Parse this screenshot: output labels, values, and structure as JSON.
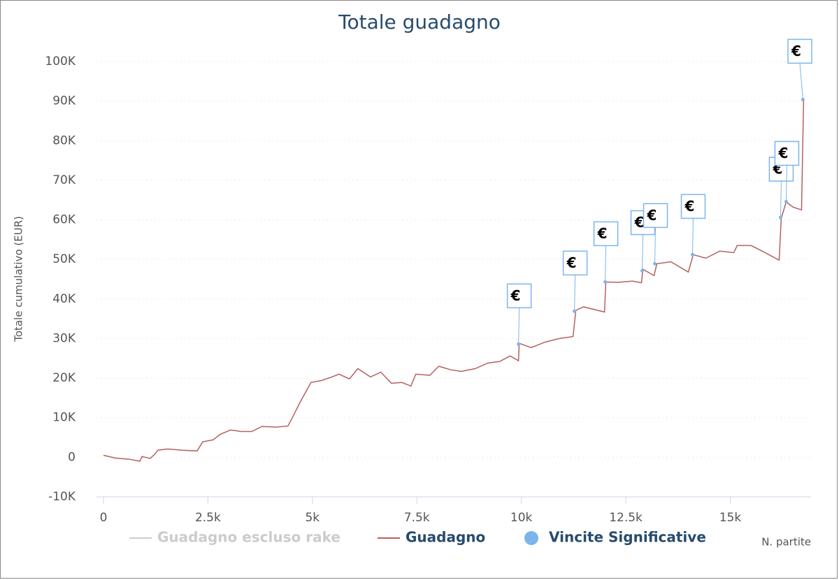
{
  "chart_data": {
    "type": "line",
    "title": "Totale guadagno",
    "x_label": "N. partite",
    "y_label": "Totale cumulativo (EUR)",
    "xlim": [
      0,
      16900
    ],
    "ylim": [
      -10000,
      100000
    ],
    "xticks": [
      0,
      {
        "value": 2500,
        "label": "2.5k"
      },
      {
        "value": 5000,
        "label": "5k"
      },
      {
        "value": 7500,
        "label": "7.5k"
      },
      {
        "value": 10000,
        "label": "10k"
      },
      {
        "value": 12500,
        "label": "12.5k"
      },
      {
        "value": 15000,
        "label": "15k"
      }
    ],
    "yticks": [
      {
        "value": -10000,
        "label": "-10K"
      },
      0,
      {
        "value": 10000,
        "label": "10K"
      },
      {
        "value": 20000,
        "label": "20K"
      },
      {
        "value": 30000,
        "label": "30K"
      },
      {
        "value": 40000,
        "label": "40K"
      },
      {
        "value": 50000,
        "label": "50K"
      },
      {
        "value": 60000,
        "label": "60K"
      },
      {
        "value": 70000,
        "label": "70K"
      },
      {
        "value": 80000,
        "label": "80K"
      },
      {
        "value": 90000,
        "label": "90K"
      },
      {
        "value": 100000,
        "label": "100K"
      }
    ],
    "grid": true,
    "series": [
      {
        "name": "Guadagno escluso rake",
        "color": "#cccccc",
        "kind": "line",
        "visible": false,
        "x": [],
        "values": []
      },
      {
        "name": "Guadagno",
        "color": "#b5615f",
        "kind": "line",
        "visible": true,
        "x": [
          0,
          284,
          619,
          870,
          920,
          1120,
          1237,
          1304,
          1538,
          1873,
          2241,
          2375,
          2625,
          2793,
          3043,
          3294,
          3545,
          3796,
          4130,
          4415,
          4548,
          4716,
          4967,
          5217,
          5468,
          5635,
          5886,
          6087,
          6388,
          6639,
          6890,
          7140,
          7358,
          7475,
          7809,
          8027,
          8311,
          8562,
          8896,
          9197,
          9482,
          9732,
          9933,
          9950,
          10234,
          10569,
          10903,
          11237,
          11304,
          11488,
          11990,
          12023,
          12324,
          12659,
          12876,
          12910,
          13177,
          13244,
          13579,
          13997,
          14114,
          14415,
          14749,
          15084,
          15167,
          15502,
          15836,
          16171,
          16221,
          16338,
          16505,
          16706,
          16756
        ],
        "values": [
          500,
          -200,
          -500,
          -1000,
          200,
          -300,
          900,
          1800,
          2100,
          1800,
          1600,
          3900,
          4400,
          5800,
          6900,
          6500,
          6500,
          7800,
          7600,
          7900,
          10600,
          14100,
          18900,
          19400,
          20300,
          21000,
          19800,
          22400,
          20300,
          21500,
          18700,
          18900,
          18000,
          21000,
          20700,
          23000,
          22100,
          21700,
          22400,
          23800,
          24200,
          25600,
          24400,
          28800,
          27700,
          29100,
          30000,
          30500,
          37100,
          38000,
          36700,
          44300,
          44200,
          44500,
          44100,
          47500,
          45900,
          48900,
          49400,
          46800,
          51200,
          50300,
          52100,
          51700,
          53500,
          53500,
          51700,
          49800,
          60400,
          64500,
          63200,
          62500,
          90200
        ]
      },
      {
        "name": "Vincite Significative",
        "color": "#7cb5ec",
        "kind": "scatter",
        "visible": true,
        "marker_label": "€",
        "x": [
          9933,
          11271,
          12007,
          12893,
          13194,
          14097,
          16204,
          16338,
          16739
        ],
        "values": [
          28600,
          36900,
          44300,
          47100,
          48900,
          51200,
          60600,
          64600,
          90400
        ]
      }
    ]
  }
}
